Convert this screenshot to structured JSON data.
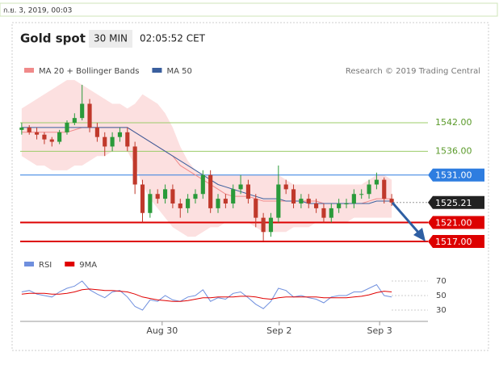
{
  "timestamp": "ก.ย. 3, 2019, 00:03",
  "chart_data": [
    {
      "type": "candlestick",
      "title": "Gold spot",
      "subtitle": "30 MIN",
      "time": "02:05:52 CET",
      "credit": "Research © 2019 Trading Central",
      "up_color": "#2a9a3a",
      "down_color": "#c0392b",
      "xlim": [
        -0.2,
        53.8
      ],
      "ylim": [
        1515,
        1555
      ],
      "ohlc": [
        [
          1540.5,
          1542,
          1539.5,
          1541
        ],
        [
          1541,
          1541.5,
          1539.5,
          1540
        ],
        [
          1540,
          1541,
          1538.5,
          1539.5
        ],
        [
          1539.5,
          1540,
          1537.5,
          1538.5
        ],
        [
          1538.5,
          1539,
          1537,
          1538
        ],
        [
          1538,
          1540.5,
          1537.5,
          1540
        ],
        [
          1540,
          1542.5,
          1539.5,
          1542
        ],
        [
          1542,
          1544,
          1541.5,
          1543
        ],
        [
          1543,
          1550,
          1542.5,
          1546
        ],
        [
          1546,
          1547,
          1540,
          1541
        ],
        [
          1541,
          1542,
          1538,
          1539
        ],
        [
          1539,
          1540,
          1535,
          1537
        ],
        [
          1537,
          1540,
          1536,
          1539
        ],
        [
          1539,
          1541,
          1538,
          1540
        ],
        [
          1540,
          1541,
          1536,
          1537
        ],
        [
          1537,
          1538,
          1527,
          1529
        ],
        [
          1529,
          1530,
          1521,
          1523
        ],
        [
          1523,
          1528,
          1522,
          1527
        ],
        [
          1527,
          1528,
          1525,
          1526
        ],
        [
          1526,
          1529,
          1525,
          1528
        ],
        [
          1528,
          1529,
          1524,
          1525
        ],
        [
          1525,
          1526,
          1522,
          1524
        ],
        [
          1524,
          1527,
          1523,
          1526
        ],
        [
          1526,
          1528,
          1525,
          1527
        ],
        [
          1527,
          1532,
          1526,
          1531
        ],
        [
          1531,
          1532,
          1523,
          1524
        ],
        [
          1524,
          1527,
          1523,
          1526
        ],
        [
          1526,
          1527,
          1524,
          1525
        ],
        [
          1525,
          1529,
          1524,
          1528
        ],
        [
          1528,
          1531,
          1527,
          1529
        ],
        [
          1529,
          1530,
          1525,
          1526
        ],
        [
          1526,
          1527,
          1520,
          1522
        ],
        [
          1522,
          1523,
          1517,
          1519
        ],
        [
          1519,
          1523,
          1518,
          1522
        ],
        [
          1522,
          1533,
          1521,
          1529
        ],
        [
          1529,
          1530,
          1527,
          1528
        ],
        [
          1528,
          1529,
          1524,
          1525
        ],
        [
          1525,
          1527,
          1524,
          1526
        ],
        [
          1526,
          1527,
          1524,
          1525
        ],
        [
          1525,
          1526,
          1523,
          1524
        ],
        [
          1524,
          1525,
          1521,
          1522
        ],
        [
          1522,
          1525,
          1521,
          1524
        ],
        [
          1524,
          1526,
          1523,
          1525
        ],
        [
          1525,
          1526,
          1524,
          1525
        ],
        [
          1525,
          1528,
          1524,
          1527
        ],
        [
          1527,
          1528,
          1526,
          1527
        ],
        [
          1527,
          1530,
          1526,
          1529
        ],
        [
          1529,
          1531.5,
          1528,
          1530
        ],
        [
          1530,
          1530.5,
          1525,
          1526
        ],
        [
          1526,
          1527,
          1524.5,
          1525.2
        ]
      ],
      "band": {
        "color": "#fbd3d3",
        "upper": [
          1545,
          1546,
          1547,
          1548,
          1549,
          1550,
          1551,
          1551,
          1550,
          1549,
          1548,
          1547,
          1546,
          1546,
          1545,
          1546,
          1548,
          1547,
          1546,
          1544,
          1541,
          1537,
          1534,
          1532,
          1531,
          1531,
          1531,
          1531,
          1531,
          1531,
          1531,
          1531,
          1531,
          1531,
          1531,
          1530,
          1529,
          1529,
          1529,
          1529,
          1529,
          1529,
          1529,
          1529,
          1529,
          1529,
          1530,
          1531,
          1531,
          1530
        ],
        "lower": [
          1535,
          1534,
          1533,
          1533,
          1532,
          1532,
          1532,
          1533,
          1533,
          1534,
          1535,
          1535,
          1536,
          1536,
          1536,
          1533,
          1529,
          1526,
          1524,
          1522,
          1520,
          1519,
          1518,
          1518,
          1519,
          1520,
          1520,
          1521,
          1521,
          1521,
          1521,
          1520,
          1519,
          1519,
          1519,
          1519,
          1520,
          1520,
          1520,
          1521,
          1521,
          1521,
          1521,
          1521,
          1522,
          1522,
          1522,
          1522,
          1522,
          1522
        ]
      },
      "series": [
        {
          "name": "MA 20 + Bollinger Bands",
          "color": "#f08a8a",
          "values": [
            1540,
            1540,
            1540,
            1540,
            1540,
            1540,
            1540,
            1540.5,
            1541,
            1541,
            1541,
            1541,
            1541,
            1541,
            1541,
            1540,
            1539,
            1538,
            1537,
            1536,
            1535,
            1533,
            1532,
            1531,
            1530,
            1529,
            1528,
            1527,
            1526.5,
            1526.5,
            1526.5,
            1526,
            1525.5,
            1525.5,
            1525.5,
            1525.5,
            1525.5,
            1525.5,
            1525.5,
            1525.5,
            1525,
            1525,
            1525,
            1525,
            1525,
            1525,
            1525.5,
            1526,
            1526,
            1526
          ]
        },
        {
          "name": "MA 50",
          "color": "#3a5f9e",
          "values": [
            1541,
            1541,
            1541,
            1541,
            1541,
            1541,
            1541,
            1541,
            1541,
            1541,
            1541,
            1541,
            1541,
            1541,
            1541,
            1540,
            1539,
            1538,
            1537,
            1536,
            1535,
            1534,
            1533,
            1532,
            1531,
            1530,
            1529,
            1528.5,
            1528,
            1527.5,
            1527,
            1526.5,
            1526,
            1526,
            1526,
            1525.5,
            1525.5,
            1525.5,
            1525,
            1525,
            1525,
            1525,
            1525,
            1525,
            1525,
            1525,
            1525,
            1525.5,
            1525.5,
            1525.5
          ]
        }
      ],
      "levels": [
        {
          "value": 1542,
          "label": "1542.00",
          "color": "#9ccc6a",
          "boxed": false,
          "dashed": false
        },
        {
          "value": 1536,
          "label": "1536.00",
          "color": "#9ccc6a",
          "boxed": false,
          "dashed": false
        },
        {
          "value": 1531,
          "label": "1531.00",
          "color": "#2e7de0",
          "boxed": true,
          "dashed": false
        },
        {
          "value": 1525.21,
          "label": "1525.21",
          "color": "#222222",
          "boxed": true,
          "dashed": true
        },
        {
          "value": 1521,
          "label": "1521.00",
          "color": "#dd0000",
          "boxed": true,
          "dashed": false
        },
        {
          "value": 1517,
          "label": "1517.00",
          "color": "#dd0000",
          "boxed": true,
          "dashed": false
        }
      ]
    },
    {
      "type": "line",
      "xlim": [
        -0.2,
        53.8
      ],
      "ylim": [
        20,
        80
      ],
      "yticks": [
        30,
        50,
        70
      ],
      "xticks": [
        {
          "value": 18.6,
          "label": "Aug 30"
        },
        {
          "value": 34.1,
          "label": "Sep 2"
        },
        {
          "value": 47.4,
          "label": "Sep 3"
        }
      ],
      "series": [
        {
          "name": "RSI",
          "color": "#6f8fde",
          "values": [
            55,
            57,
            52,
            50,
            48,
            55,
            60,
            63,
            70,
            58,
            52,
            47,
            55,
            57,
            48,
            35,
            30,
            44,
            42,
            50,
            44,
            42,
            48,
            50,
            58,
            42,
            47,
            45,
            53,
            55,
            47,
            38,
            32,
            42,
            60,
            57,
            48,
            50,
            47,
            45,
            40,
            48,
            50,
            50,
            55,
            55,
            60,
            65,
            50,
            48
          ]
        },
        {
          "name": "9MA",
          "color": "#e00000",
          "values": [
            52,
            53,
            53,
            53,
            52,
            52,
            53,
            55,
            58,
            59,
            58,
            57,
            57,
            56,
            55,
            52,
            48,
            46,
            44,
            43,
            42,
            42,
            43,
            45,
            47,
            47,
            48,
            48,
            48,
            49,
            49,
            48,
            46,
            45,
            47,
            48,
            48,
            48,
            48,
            48,
            47,
            47,
            47,
            47,
            48,
            49,
            51,
            54,
            56,
            55
          ]
        }
      ]
    }
  ]
}
